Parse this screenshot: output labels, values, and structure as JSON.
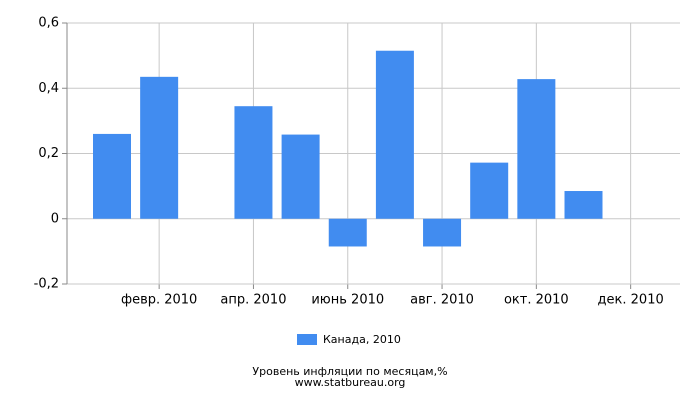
{
  "chart_data": {
    "type": "bar",
    "title": "Уровень инфляции по месяцам,%",
    "source": "www.statbureau.org",
    "categories": [
      null,
      "февр. 2010",
      null,
      "апр. 2010",
      null,
      "июнь 2010",
      null,
      "авг. 2010",
      null,
      "окт. 2010",
      null,
      "дек. 2010"
    ],
    "series": [
      {
        "name": "Канада, 2010",
        "color": "#418cf0",
        "values": [
          0.26,
          0.435,
          0,
          0.345,
          0.258,
          -0.085,
          0.515,
          -0.085,
          0.172,
          0.428,
          0.085,
          0
        ]
      }
    ],
    "ylim": [
      -0.2,
      0.6
    ],
    "yticks": [
      {
        "value": -0.2,
        "label": "-0,2"
      },
      0,
      {
        "value": 0.2,
        "label": "0,2"
      },
      {
        "value": 0.4,
        "label": "0,4"
      },
      {
        "value": 0.6,
        "label": "0,6"
      }
    ],
    "grid": true,
    "legend": "bottom"
  }
}
